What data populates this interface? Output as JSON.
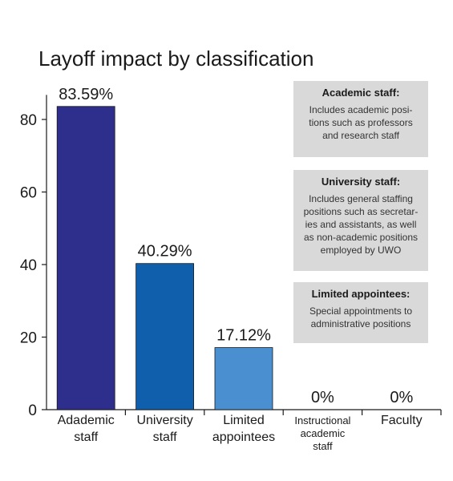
{
  "chart_data": {
    "type": "bar",
    "title": "Layoff impact by classification",
    "categories": [
      "Adademic\nstaff",
      "University\nstaff",
      "Limited\nappointees",
      "Instructional\nacademic\nstaff",
      "Faculty"
    ],
    "values": [
      83.59,
      40.29,
      17.12,
      0,
      0
    ],
    "value_labels": [
      "83.59%",
      "40.29%",
      "17.12%",
      "0%",
      "0%"
    ],
    "bar_colors": [
      "#2e2e8c",
      "#0f5fad",
      "#4a90d0",
      "#4a90d0",
      "#4a90d0"
    ],
    "ylim": [
      0,
      85
    ],
    "yticks": [
      0,
      20,
      40,
      60,
      80
    ],
    "xlabel": "",
    "ylabel": "",
    "grid": false
  },
  "legend_notes": [
    {
      "heading": "Academic staff:",
      "lines": [
        "Includes academic posi-",
        "tions such as professors",
        "and research staff"
      ]
    },
    {
      "heading": "University staff:",
      "lines": [
        "Includes general staffing",
        "positions such as secretar-",
        "ies and assistants, as well",
        "as non-academic positions",
        "employed by UWO"
      ]
    },
    {
      "heading": "Limited appointees:",
      "lines": [
        "Special appointments to",
        "administrative positions"
      ]
    }
  ]
}
